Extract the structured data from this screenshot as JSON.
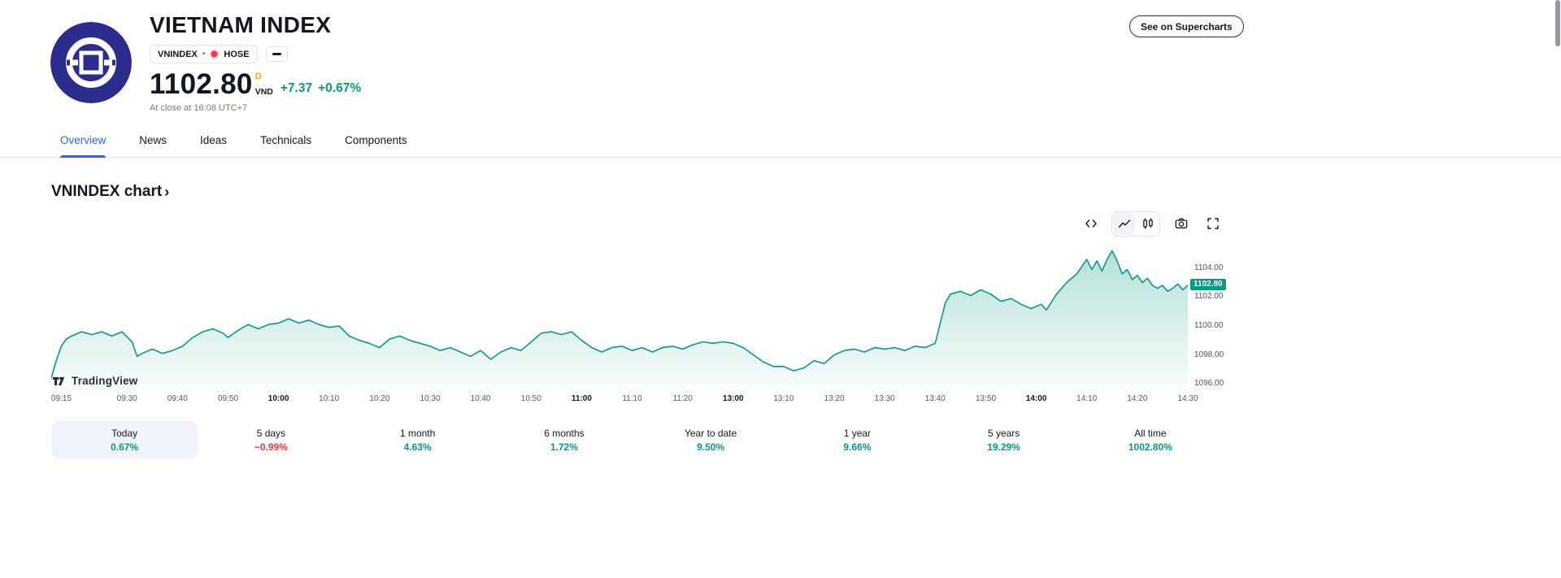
{
  "colors": {
    "accent_blue": "#2962ff",
    "up_green": "#089981",
    "down_red": "#f23645",
    "delayed_orange": "#f7a600",
    "logo_bg": "#2c2c8e",
    "border": "#e0e3eb",
    "text": "#131722",
    "muted": "#787b86"
  },
  "header": {
    "title": "VIETNAM INDEX",
    "ticker": "VNINDEX",
    "separator": "•",
    "exchange": "HOSE",
    "price": "1102.80",
    "delayed_flag": "D",
    "currency": "VND",
    "change_abs": "+7.37",
    "change_pct": "+0.67%",
    "close_note": "At close at 16:08 UTC+7",
    "supercharts_label": "See on Supercharts"
  },
  "tabs": [
    {
      "label": "Overview",
      "active": true
    },
    {
      "label": "News",
      "active": false
    },
    {
      "label": "Ideas",
      "active": false
    },
    {
      "label": "Technicals",
      "active": false
    },
    {
      "label": "Components",
      "active": false
    }
  ],
  "section": {
    "title": "VNINDEX chart",
    "chevron": "›"
  },
  "watermark": {
    "label": "TradingView"
  },
  "toolbar": {
    "icons": [
      "code-icon",
      "area-chart-icon",
      "candles-icon",
      "camera-icon",
      "fullscreen-icon"
    ]
  },
  "periods": [
    {
      "label": "Today",
      "value": "0.67%",
      "direction": "up",
      "active": true
    },
    {
      "label": "5 days",
      "value": "−0.99%",
      "direction": "down",
      "active": false
    },
    {
      "label": "1 month",
      "value": "4.63%",
      "direction": "up",
      "active": false
    },
    {
      "label": "6 months",
      "value": "1.72%",
      "direction": "up",
      "active": false
    },
    {
      "label": "Year to date",
      "value": "9.50%",
      "direction": "up",
      "active": false
    },
    {
      "label": "1 year",
      "value": "9.66%",
      "direction": "up",
      "active": false
    },
    {
      "label": "5 years",
      "value": "19.29%",
      "direction": "up",
      "active": false
    },
    {
      "label": "All time",
      "value": "1002.80%",
      "direction": "up",
      "active": false
    }
  ],
  "chart_data": {
    "type": "area",
    "title": "VNINDEX chart",
    "xlabel": "",
    "ylabel": "",
    "line_color": "#089981",
    "fill_top": "rgba(8,153,129,0.30)",
    "fill_bottom": "rgba(8,153,129,0.02)",
    "grid": false,
    "legend": false,
    "t_max": 225,
    "ylim": [
      1095.5,
      1105.9
    ],
    "session_note": "x = minutes since 09:15, lunch break 11:30-13:00 collapsed",
    "y_ticks": [
      {
        "value": 1104,
        "label": "1104.00"
      },
      {
        "value": 1102,
        "label": "1102.00"
      },
      {
        "value": 1100,
        "label": "1100.00"
      },
      {
        "value": 1098,
        "label": "1098.00"
      },
      {
        "value": 1096,
        "label": "1096.00"
      }
    ],
    "last_price": {
      "value": 1102.8,
      "label": "1102.80"
    },
    "x_ticks": [
      {
        "t": 0,
        "label": "09:15",
        "align": "left"
      },
      {
        "t": 15,
        "label": "09:30"
      },
      {
        "t": 25,
        "label": "09:40"
      },
      {
        "t": 35,
        "label": "09:50"
      },
      {
        "t": 45,
        "label": "10:00",
        "bold": true
      },
      {
        "t": 55,
        "label": "10:10"
      },
      {
        "t": 65,
        "label": "10:20"
      },
      {
        "t": 75,
        "label": "10:30"
      },
      {
        "t": 85,
        "label": "10:40"
      },
      {
        "t": 95,
        "label": "10:50"
      },
      {
        "t": 105,
        "label": "11:00",
        "bold": true
      },
      {
        "t": 115,
        "label": "11:10"
      },
      {
        "t": 125,
        "label": "11:20"
      },
      {
        "t": 135,
        "label": "13:00",
        "bold": true
      },
      {
        "t": 145,
        "label": "13:10"
      },
      {
        "t": 155,
        "label": "13:20"
      },
      {
        "t": 165,
        "label": "13:30"
      },
      {
        "t": 175,
        "label": "13:40"
      },
      {
        "t": 185,
        "label": "13:50"
      },
      {
        "t": 195,
        "label": "14:00",
        "bold": true
      },
      {
        "t": 205,
        "label": "14:10"
      },
      {
        "t": 215,
        "label": "14:20"
      },
      {
        "t": 225,
        "label": "14:30"
      }
    ],
    "points": [
      [
        0,
        1096.4
      ],
      [
        1,
        1097.6
      ],
      [
        2,
        1098.6
      ],
      [
        3,
        1099.1
      ],
      [
        4,
        1099.3
      ],
      [
        6,
        1099.6
      ],
      [
        8,
        1099.4
      ],
      [
        10,
        1099.6
      ],
      [
        12,
        1099.3
      ],
      [
        14,
        1099.6
      ],
      [
        16,
        1098.9
      ],
      [
        17,
        1097.9
      ],
      [
        18,
        1098.1
      ],
      [
        20,
        1098.4
      ],
      [
        22,
        1098.1
      ],
      [
        24,
        1098.3
      ],
      [
        26,
        1098.6
      ],
      [
        28,
        1099.2
      ],
      [
        30,
        1099.6
      ],
      [
        32,
        1099.8
      ],
      [
        34,
        1099.5
      ],
      [
        35,
        1099.2
      ],
      [
        37,
        1099.7
      ],
      [
        39,
        1100.1
      ],
      [
        41,
        1099.8
      ],
      [
        43,
        1100.1
      ],
      [
        45,
        1100.2
      ],
      [
        47,
        1100.5
      ],
      [
        49,
        1100.2
      ],
      [
        51,
        1100.4
      ],
      [
        53,
        1100.1
      ],
      [
        55,
        1099.9
      ],
      [
        57,
        1100.0
      ],
      [
        59,
        1099.3
      ],
      [
        61,
        1099.0
      ],
      [
        63,
        1098.8
      ],
      [
        65,
        1098.5
      ],
      [
        67,
        1099.1
      ],
      [
        69,
        1099.3
      ],
      [
        71,
        1099.0
      ],
      [
        73,
        1098.8
      ],
      [
        75,
        1098.6
      ],
      [
        77,
        1098.3
      ],
      [
        79,
        1098.5
      ],
      [
        81,
        1098.2
      ],
      [
        83,
        1097.9
      ],
      [
        85,
        1098.3
      ],
      [
        87,
        1097.7
      ],
      [
        89,
        1098.2
      ],
      [
        91,
        1098.5
      ],
      [
        93,
        1098.3
      ],
      [
        95,
        1098.9
      ],
      [
        97,
        1099.5
      ],
      [
        99,
        1099.6
      ],
      [
        101,
        1099.4
      ],
      [
        103,
        1099.6
      ],
      [
        105,
        1099.0
      ],
      [
        107,
        1098.5
      ],
      [
        109,
        1098.2
      ],
      [
        111,
        1098.5
      ],
      [
        113,
        1098.6
      ],
      [
        115,
        1098.3
      ],
      [
        117,
        1098.5
      ],
      [
        119,
        1098.2
      ],
      [
        121,
        1098.5
      ],
      [
        123,
        1098.6
      ],
      [
        125,
        1098.4
      ],
      [
        127,
        1098.7
      ],
      [
        129,
        1098.9
      ],
      [
        131,
        1098.8
      ],
      [
        133,
        1098.9
      ],
      [
        135,
        1098.8
      ],
      [
        137,
        1098.5
      ],
      [
        139,
        1098.0
      ],
      [
        141,
        1097.5
      ],
      [
        143,
        1097.2
      ],
      [
        145,
        1097.2
      ],
      [
        147,
        1096.9
      ],
      [
        149,
        1097.1
      ],
      [
        151,
        1097.6
      ],
      [
        153,
        1097.4
      ],
      [
        155,
        1098.0
      ],
      [
        157,
        1098.3
      ],
      [
        159,
        1098.4
      ],
      [
        161,
        1098.2
      ],
      [
        163,
        1098.5
      ],
      [
        165,
        1098.4
      ],
      [
        167,
        1098.5
      ],
      [
        169,
        1098.3
      ],
      [
        171,
        1098.6
      ],
      [
        173,
        1098.5
      ],
      [
        175,
        1098.8
      ],
      [
        176,
        1100.2
      ],
      [
        177,
        1101.6
      ],
      [
        178,
        1102.2
      ],
      [
        180,
        1102.4
      ],
      [
        182,
        1102.1
      ],
      [
        184,
        1102.5
      ],
      [
        186,
        1102.2
      ],
      [
        188,
        1101.7
      ],
      [
        190,
        1101.9
      ],
      [
        192,
        1101.5
      ],
      [
        194,
        1101.2
      ],
      [
        196,
        1101.5
      ],
      [
        197,
        1101.1
      ],
      [
        199,
        1102.2
      ],
      [
        201,
        1103.0
      ],
      [
        203,
        1103.6
      ],
      [
        204,
        1104.1
      ],
      [
        205,
        1104.6
      ],
      [
        206,
        1103.9
      ],
      [
        207,
        1104.5
      ],
      [
        208,
        1103.8
      ],
      [
        209,
        1104.6
      ],
      [
        210,
        1105.2
      ],
      [
        211,
        1104.5
      ],
      [
        212,
        1103.6
      ],
      [
        213,
        1103.9
      ],
      [
        214,
        1103.2
      ],
      [
        215,
        1103.5
      ],
      [
        216,
        1103.0
      ],
      [
        217,
        1103.3
      ],
      [
        218,
        1102.8
      ],
      [
        219,
        1102.6
      ],
      [
        220,
        1102.8
      ],
      [
        221,
        1102.4
      ],
      [
        222,
        1102.6
      ],
      [
        223,
        1102.9
      ],
      [
        224,
        1102.5
      ],
      [
        225,
        1102.8
      ]
    ]
  }
}
